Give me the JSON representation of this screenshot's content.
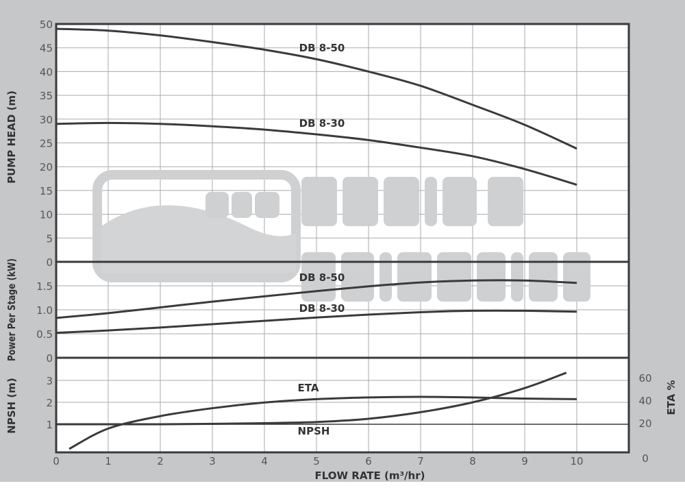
{
  "chart_data": {
    "type": "line",
    "xlabel": "FLOW RATE (m³/hr)",
    "x_ticks": [
      "0",
      "1",
      "2",
      "3",
      "4",
      "5",
      "6",
      "7",
      "8",
      "9",
      "10"
    ],
    "xlim": [
      0,
      11
    ],
    "grid": true,
    "watermark": "D&S DAVIS & SHIRTLIFF",
    "colors": {
      "background": "#c6c7c9",
      "plot": "#ffffff",
      "line": "#3a3a3a",
      "grid": "#aaaaaa",
      "watermark": "#cfd0d2"
    },
    "panels": [
      {
        "ylabel": "PUMP HEAD  (m)",
        "ylim": [
          0,
          50
        ],
        "y_ticks": [
          "0",
          "5",
          "10",
          "15",
          "20",
          "25",
          "30",
          "35",
          "40",
          "45",
          "50"
        ],
        "series": [
          {
            "name": "DB 8-50",
            "x": [
              0,
              1,
              2,
              3,
              4,
              5,
              6,
              7,
              8,
              9,
              10
            ],
            "y": [
              49,
              48.6,
              47.6,
              46.2,
              44.6,
              42.6,
              40,
              37,
              33,
              28.8,
              23.8
            ]
          },
          {
            "name": "DB 8-30",
            "x": [
              0,
              1,
              2,
              3,
              4,
              5,
              6,
              7,
              8,
              9,
              10
            ],
            "y": [
              29,
              29.2,
              29,
              28.5,
              27.8,
              26.8,
              25.6,
              24,
              22.2,
              19.5,
              16.2
            ]
          }
        ]
      },
      {
        "ylabel": "Power Per Stage (kW)",
        "ylim": [
          0,
          2
        ],
        "y_ticks": [
          "0",
          "0.5",
          "1.0",
          "1.5"
        ],
        "series": [
          {
            "name": "DB 8-50",
            "x": [
              0,
              1,
              2,
              3,
              4,
              5,
              6,
              7,
              8,
              9,
              10
            ],
            "y": [
              0.83,
              0.93,
              1.05,
              1.17,
              1.28,
              1.39,
              1.49,
              1.57,
              1.61,
              1.61,
              1.56
            ]
          },
          {
            "name": "DB 8-30",
            "x": [
              0,
              1,
              2,
              3,
              4,
              5,
              6,
              7,
              8,
              9,
              10
            ],
            "y": [
              0.52,
              0.57,
              0.63,
              0.7,
              0.77,
              0.84,
              0.9,
              0.95,
              0.98,
              0.98,
              0.96
            ]
          }
        ]
      },
      {
        "ylabel": "NPSH (m)",
        "ylim": [
          0,
          4
        ],
        "y_ticks": [
          "1",
          "2",
          "3"
        ],
        "y2label": "ETA %",
        "y2_ticks": [
          "0",
          "20",
          "40",
          "60"
        ],
        "series": [
          {
            "name": "NPSH",
            "axis": "left",
            "x": [
              0,
              1,
              2,
              3,
              4,
              5,
              6,
              7,
              8,
              9,
              9.8
            ],
            "y": [
              1.0,
              1.0,
              1.0,
              1.02,
              1.05,
              1.1,
              1.25,
              1.55,
              2.0,
              2.65,
              3.35
            ]
          },
          {
            "name": "ETA",
            "axis": "right",
            "x": [
              0.25,
              1,
              2,
              3,
              4,
              5,
              6,
              7,
              8,
              9,
              10
            ],
            "y": [
              -3,
              15,
              26,
              33,
              38,
              41,
              42.5,
              43,
              42.5,
              41.5,
              41
            ]
          }
        ]
      }
    ]
  }
}
